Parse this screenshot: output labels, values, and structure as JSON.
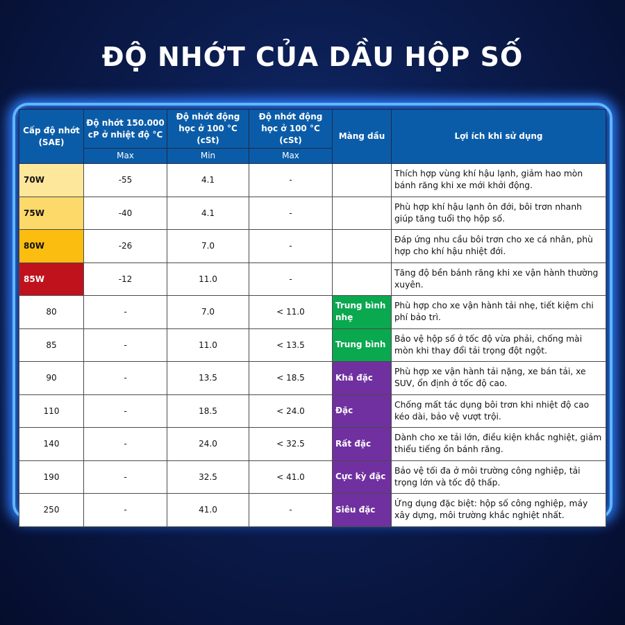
{
  "title": "ĐỘ NHỚT CỦA DẦU HỘP SỐ",
  "headers": {
    "sae": "Cấp độ nhớt (SAE)",
    "cp": "Độ nhớt 150.000 cP ở nhiệt độ °C",
    "kin_min": "Độ nhớt động học ở 100 °C (cSt)",
    "kin_max": "Độ nhớt động học ở 100 °C (cSt)",
    "film": "Màng dầu",
    "benefit": "Lợi ích khi sử dụng",
    "sub_cp": "Max",
    "sub_min": "Min",
    "sub_max": "Max"
  },
  "colors": {
    "header": "#0b5ca8",
    "green": "#0aa84f",
    "purple": "#7030a0"
  },
  "rows": [
    {
      "sae": "70W",
      "cp": "-55",
      "min": "4.1",
      "max": "-",
      "film": "",
      "benefit": "Thích hợp vùng khí hậu lạnh, giảm hao mòn bánh răng khi xe mới khởi động.",
      "bg": "#fde79b",
      "fg": "#111"
    },
    {
      "sae": "75W",
      "cp": "-40",
      "min": "4.1",
      "max": "-",
      "film": "",
      "benefit": "Phù hợp khí hậu lạnh ôn đới, bôi trơn nhanh giúp tăng tuổi thọ hộp số.",
      "bg": "#fdd96a",
      "fg": "#111"
    },
    {
      "sae": "80W",
      "cp": "-26",
      "min": "7.0",
      "max": "-",
      "film": "",
      "benefit": "Đáp ứng nhu cầu bôi trơn cho xe cá nhân, phù hợp cho khí hậu nhiệt đới.",
      "bg": "#fbbd0f",
      "fg": "#111"
    },
    {
      "sae": "85W",
      "cp": "-12",
      "min": "11.0",
      "max": "-",
      "film": "",
      "benefit": "Tăng độ bền bánh răng khi xe vận hành thường xuyên.",
      "bg": "#c0121d",
      "fg": "#fff"
    },
    {
      "sae": "80",
      "cp": "-",
      "min": "7.0",
      "max": "< 11.0",
      "film": "Trung bình nhẹ",
      "filmColor": "#0aa84f",
      "benefit": "Phù hợp cho xe vận hành tải nhẹ, tiết kiệm chi phí bảo trì."
    },
    {
      "sae": "85",
      "cp": "-",
      "min": "11.0",
      "max": "< 13.5",
      "film": "Trung bình",
      "filmColor": "#0aa84f",
      "benefit": "Bảo vệ hộp số ở tốc độ vừa phải, chống mài mòn khi thay đổi tải trọng đột ngột."
    },
    {
      "sae": "90",
      "cp": "-",
      "min": "13.5",
      "max": "< 18.5",
      "film": "Khá đặc",
      "filmColor": "#7030a0",
      "benefit": "Phù hợp xe vận hành tải nặng, xe bán tải, xe SUV, ổn định ở tốc độ cao."
    },
    {
      "sae": "110",
      "cp": "-",
      "min": "18.5",
      "max": "< 24.0",
      "film": "Đặc",
      "filmColor": "#7030a0",
      "benefit": "Chống mất tác dụng bôi trơn khi nhiệt độ cao kéo dài, bảo vệ vượt trội."
    },
    {
      "sae": "140",
      "cp": "-",
      "min": "24.0",
      "max": "< 32.5",
      "film": "Rất đặc",
      "filmColor": "#7030a0",
      "benefit": "Dành cho xe tải lớn, điều kiện khắc nghiệt, giảm thiểu tiếng ồn bánh răng."
    },
    {
      "sae": "190",
      "cp": "-",
      "min": "32.5",
      "max": "< 41.0",
      "film": "Cực kỳ đặc",
      "filmColor": "#7030a0",
      "benefit": "Bảo vệ tối đa ở môi trường công nghiệp, tải trọng lớn và tốc độ thấp."
    },
    {
      "sae": "250",
      "cp": "-",
      "min": "41.0",
      "max": "-",
      "film": "Siêu đặc",
      "filmColor": "#7030a0",
      "benefit": "Ứng dụng đặc biệt: hộp số công nghiệp, máy xây dựng, môi trường khắc nghiệt nhất."
    }
  ]
}
